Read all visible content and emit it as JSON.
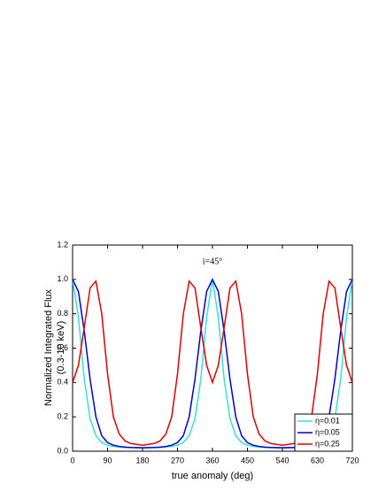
{
  "chart_data": {
    "type": "line",
    "annotation": "i=45°",
    "xlabel": "true anomaly (deg)",
    "ylabel": [
      "Normalized Integrated Flux",
      "(0.3-10 keV)"
    ],
    "x": [
      0,
      15,
      30,
      45,
      60,
      75,
      90,
      105,
      120,
      135,
      150,
      165,
      180,
      195,
      210,
      225,
      240,
      255,
      270,
      285,
      300,
      315,
      330,
      345,
      360,
      375,
      390,
      405,
      420,
      435,
      450,
      465,
      480,
      495,
      510,
      525,
      540,
      555,
      570,
      585,
      600,
      615,
      630,
      645,
      660,
      675,
      690,
      705,
      720
    ],
    "series": [
      {
        "name": "η=0.01",
        "color": "#33e0e0",
        "values": [
          1.0,
          0.78,
          0.42,
          0.19,
          0.09,
          0.05,
          0.035,
          0.028,
          0.024,
          0.022,
          0.021,
          0.02,
          0.02,
          0.02,
          0.021,
          0.022,
          0.024,
          0.028,
          0.035,
          0.05,
          0.09,
          0.19,
          0.42,
          0.78,
          1.0,
          0.78,
          0.42,
          0.19,
          0.09,
          0.05,
          0.035,
          0.028,
          0.024,
          0.022,
          0.021,
          0.02,
          0.02,
          0.02,
          0.021,
          0.022,
          0.024,
          0.028,
          0.035,
          0.05,
          0.09,
          0.19,
          0.42,
          0.78,
          1.0
        ]
      },
      {
        "name": "η=0.05",
        "color": "#0000cc",
        "values": [
          1.0,
          0.93,
          0.7,
          0.42,
          0.2,
          0.09,
          0.05,
          0.035,
          0.028,
          0.024,
          0.022,
          0.021,
          0.02,
          0.021,
          0.022,
          0.024,
          0.028,
          0.035,
          0.05,
          0.09,
          0.2,
          0.42,
          0.7,
          0.93,
          1.0,
          0.93,
          0.7,
          0.42,
          0.2,
          0.09,
          0.05,
          0.035,
          0.028,
          0.024,
          0.022,
          0.021,
          0.02,
          0.021,
          0.022,
          0.024,
          0.028,
          0.035,
          0.05,
          0.09,
          0.2,
          0.42,
          0.7,
          0.93,
          1.0
        ]
      },
      {
        "name": "η=0.25",
        "color": "#e00000",
        "values": [
          0.4,
          0.5,
          0.72,
          0.95,
          0.99,
          0.8,
          0.45,
          0.2,
          0.1,
          0.06,
          0.045,
          0.04,
          0.035,
          0.04,
          0.045,
          0.06,
          0.1,
          0.2,
          0.45,
          0.8,
          0.99,
          0.95,
          0.72,
          0.5,
          0.4,
          0.5,
          0.72,
          0.95,
          0.99,
          0.8,
          0.45,
          0.2,
          0.1,
          0.06,
          0.045,
          0.04,
          0.035,
          0.04,
          0.045,
          0.06,
          0.1,
          0.2,
          0.45,
          0.8,
          0.99,
          0.95,
          0.72,
          0.5,
          0.4
        ]
      }
    ],
    "xlim": [
      0,
      720
    ],
    "xticks": [
      0,
      90,
      180,
      270,
      360,
      450,
      540,
      630,
      720
    ],
    "ylim": [
      0,
      1.2
    ],
    "yticks": [
      {
        "value": 0,
        "label": "0.0"
      },
      0.2,
      0.4,
      0.6,
      0.8,
      {
        "value": 1,
        "label": "1.0"
      },
      1.2
    ],
    "legend": "lower right"
  }
}
